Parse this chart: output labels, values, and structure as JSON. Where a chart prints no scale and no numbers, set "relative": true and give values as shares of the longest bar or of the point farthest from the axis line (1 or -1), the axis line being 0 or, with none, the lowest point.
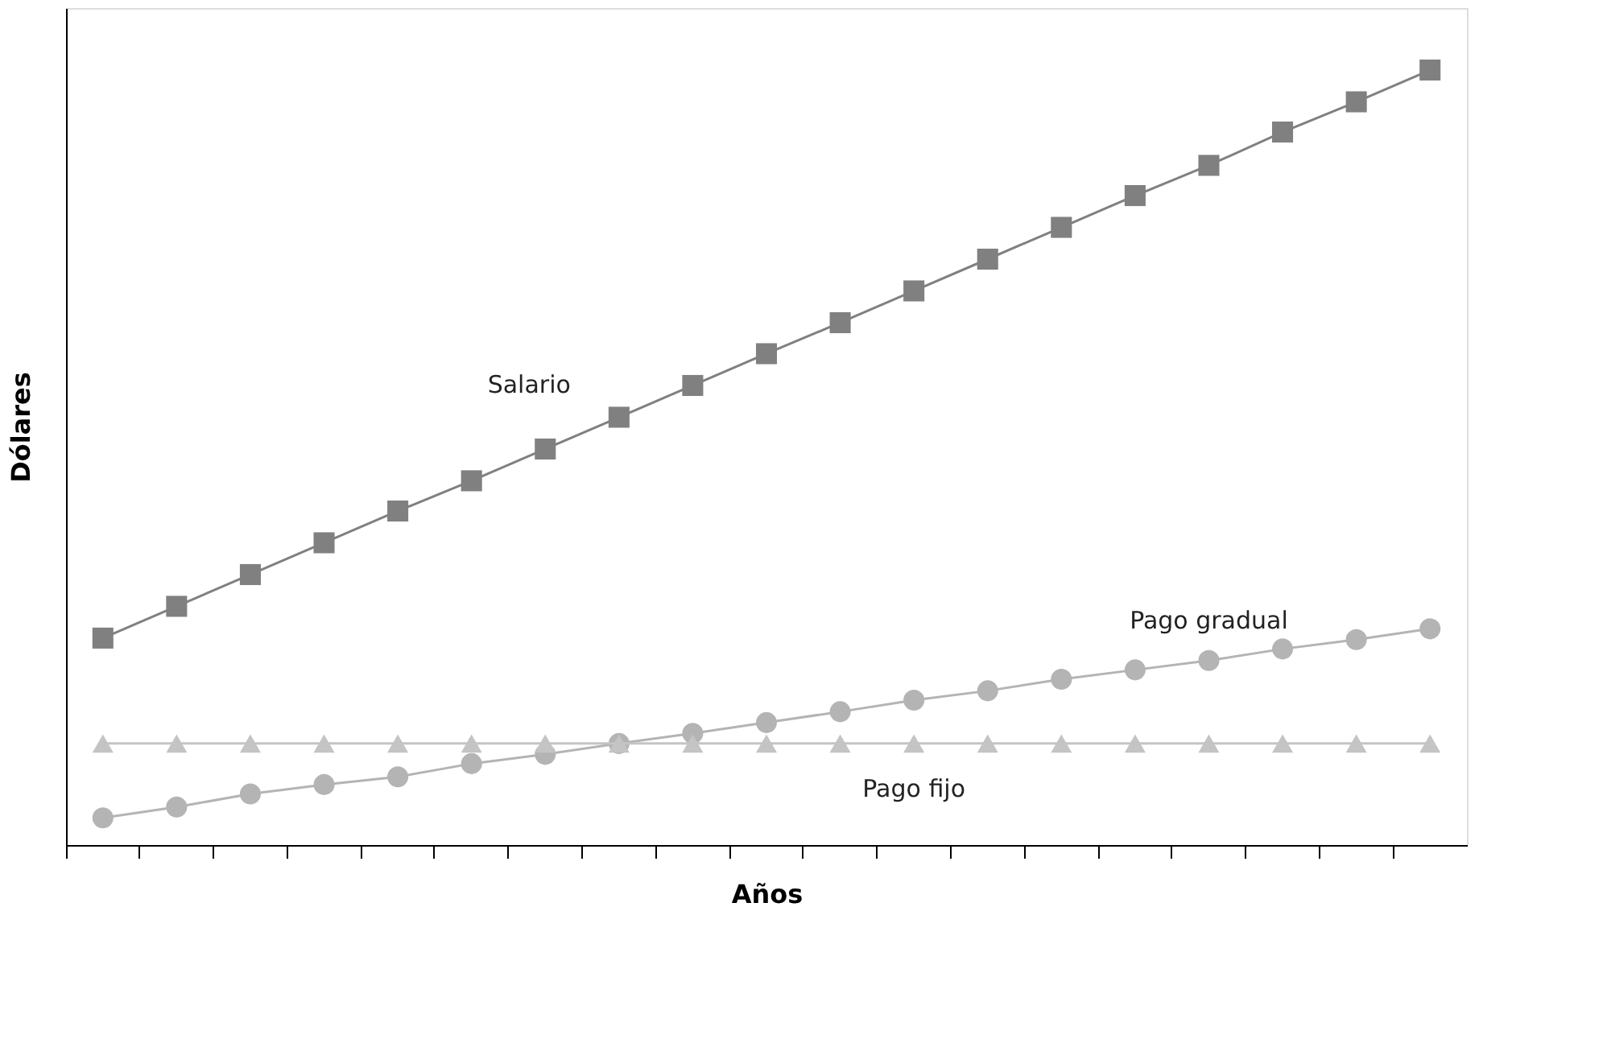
{
  "chart_data": {
    "type": "line",
    "xlabel": "Años",
    "ylabel": "Dólares",
    "relative": true,
    "tick_labels": false,
    "line_style": "solid",
    "categories": [
      null,
      null,
      null,
      null,
      null,
      null,
      null,
      null,
      null,
      null,
      null,
      null,
      null,
      null,
      null,
      null,
      null,
      null,
      null
    ],
    "series": [
      {
        "name": "Salario",
        "color": "#808080",
        "marker": "square",
        "values": [
          0.267,
          0.308,
          0.349,
          0.39,
          0.431,
          0.47,
          0.511,
          0.552,
          0.593,
          0.634,
          0.674,
          0.715,
          0.756,
          0.797,
          0.838,
          0.877,
          0.92,
          0.959,
          1.0
        ]
      },
      {
        "name": "Pago gradual",
        "color": "#b4b4b4",
        "marker": "circle",
        "values": [
          0.035,
          0.049,
          0.066,
          0.078,
          0.088,
          0.105,
          0.117,
          0.131,
          0.144,
          0.158,
          0.172,
          0.187,
          0.199,
          0.214,
          0.226,
          0.238,
          0.253,
          0.265,
          0.279
        ]
      },
      {
        "name": "Pago fijo",
        "color": "#c4c4c4",
        "marker": "triangle",
        "values": [
          0.131,
          0.131,
          0.131,
          0.131,
          0.131,
          0.131,
          0.131,
          0.131,
          0.131,
          0.131,
          0.131,
          0.131,
          0.131,
          0.131,
          0.131,
          0.131,
          0.131,
          0.131,
          0.131
        ]
      }
    ]
  }
}
